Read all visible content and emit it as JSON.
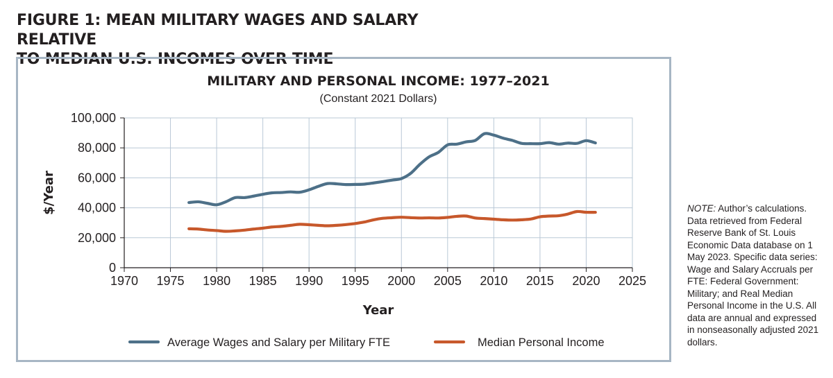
{
  "figure": {
    "title_line1": "FIGURE 1: MEAN MILITARY WAGES AND SALARY RELATIVE",
    "title_line2": "TO MEDIAN U.S. INCOMES OVER TIME"
  },
  "note": {
    "label": "NOTE:",
    "text": " Author’s calculations. Data retrieved from Federal Reserve Bank of St. Louis Economic Data database on 1 May 2023. Specific data series: Wage and Salary Accruals per FTE: Federal Government: Military; and Real Median Personal Income in the U.S. All data are annual and expressed in nonseasonally adjusted 2021 dollars."
  },
  "chart_data": {
    "type": "line",
    "title": "MILITARY AND PERSONAL INCOME: 1977–2021",
    "subtitle": "(Constant 2021 Dollars)",
    "xlabel": "Year",
    "ylabel": "$/Year",
    "xlim": [
      1970,
      2025
    ],
    "ylim": [
      0,
      100000
    ],
    "x_ticks": [
      1970,
      1975,
      1980,
      1985,
      1990,
      1995,
      2000,
      2005,
      2010,
      2015,
      2020,
      2025
    ],
    "y_ticks": [
      0,
      20000,
      40000,
      60000,
      80000,
      100000
    ],
    "y_tick_labels": [
      "0",
      "20,000",
      "40,000",
      "60,000",
      "80,000",
      "100,000"
    ],
    "grid": true,
    "legend_position": "bottom",
    "x": [
      1977,
      1978,
      1979,
      1980,
      1981,
      1982,
      1983,
      1984,
      1985,
      1986,
      1987,
      1988,
      1989,
      1990,
      1991,
      1992,
      1993,
      1994,
      1995,
      1996,
      1997,
      1998,
      1999,
      2000,
      2001,
      2002,
      2003,
      2004,
      2005,
      2006,
      2007,
      2008,
      2009,
      2010,
      2011,
      2012,
      2013,
      2014,
      2015,
      2016,
      2017,
      2018,
      2019,
      2020,
      2021
    ],
    "series": [
      {
        "name": "Average Wages and Salary per Military FTE",
        "color": "#4d7088",
        "values": [
          43500,
          44000,
          43000,
          42000,
          44000,
          46800,
          46800,
          47800,
          49000,
          50000,
          50200,
          50600,
          50400,
          52000,
          54300,
          56200,
          56000,
          55500,
          55600,
          55800,
          56600,
          57500,
          58500,
          59500,
          63000,
          69000,
          74000,
          77000,
          82000,
          82500,
          84000,
          85000,
          89500,
          88500,
          86500,
          85000,
          83000,
          82800,
          82800,
          83500,
          82500,
          83200,
          83000,
          84800,
          83300
        ]
      },
      {
        "name": "Median Personal Income",
        "color": "#c7582b",
        "values": [
          26000,
          25800,
          25200,
          24800,
          24300,
          24600,
          25100,
          25800,
          26400,
          27200,
          27600,
          28300,
          29000,
          28700,
          28300,
          28000,
          28300,
          28800,
          29500,
          30500,
          32000,
          33000,
          33400,
          33700,
          33400,
          33200,
          33300,
          33200,
          33600,
          34300,
          34500,
          33200,
          32800,
          32400,
          32000,
          31800,
          32000,
          32500,
          34000,
          34500,
          34700,
          35800,
          37500,
          37000,
          37000
        ]
      }
    ]
  }
}
